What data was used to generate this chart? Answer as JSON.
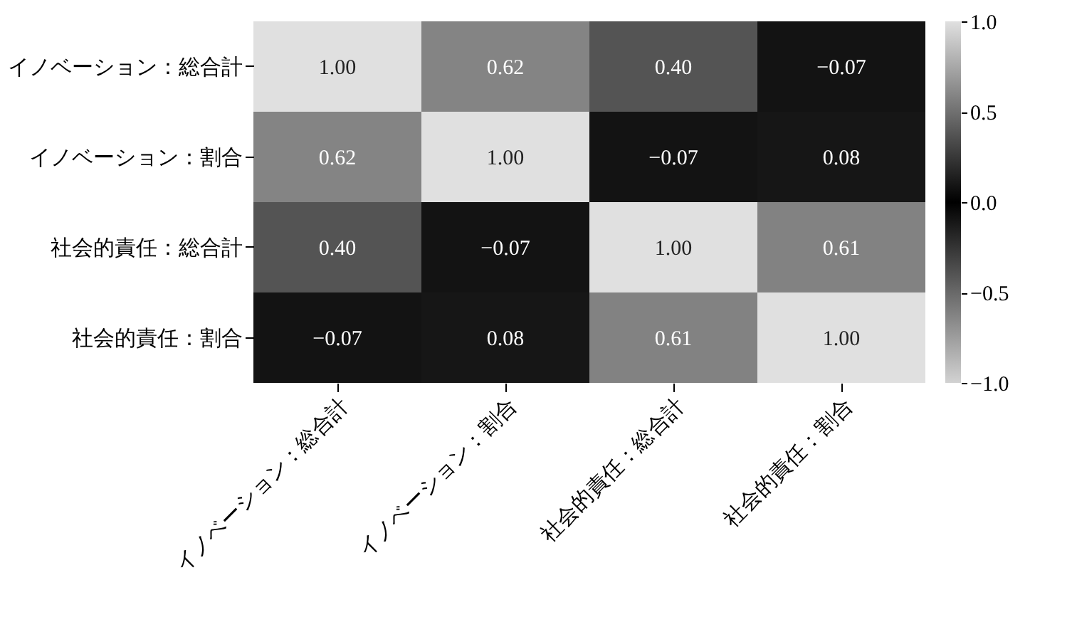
{
  "chart_data": {
    "type": "heatmap",
    "categories": [
      "イノベーション：総合計",
      "イノベーション：割合",
      "社会的責任：総合計",
      "社会的責任：割合"
    ],
    "y_categories": [
      "イノベーション：総合計",
      "イノベーション：割合",
      "社会的責任：総合計",
      "社会的責任：割合"
    ],
    "cells": [
      [
        1.0,
        0.62,
        0.4,
        -0.07
      ],
      [
        0.62,
        1.0,
        -0.07,
        0.08
      ],
      [
        0.4,
        -0.07,
        1.0,
        0.61
      ],
      [
        -0.07,
        0.08,
        0.61,
        1.0
      ]
    ],
    "cell_labels": [
      [
        "1.00",
        "0.62",
        "0.40",
        "−0.07"
      ],
      [
        "0.62",
        "1.00",
        "−0.07",
        "0.08"
      ],
      [
        "0.40",
        "−0.07",
        "1.00",
        "0.61"
      ],
      [
        "−0.07",
        "0.08",
        "0.61",
        "1.00"
      ]
    ],
    "clim": [
      -1.0,
      1.0
    ],
    "cticks": [
      {
        "value": -1.0,
        "label": "−1.0"
      },
      {
        "value": -0.5,
        "label": "−0.5"
      },
      {
        "value": 0.0,
        "label": "0.0"
      },
      {
        "value": 0.5,
        "label": "0.5"
      },
      {
        "value": 1.0,
        "label": "1.0"
      }
    ]
  }
}
